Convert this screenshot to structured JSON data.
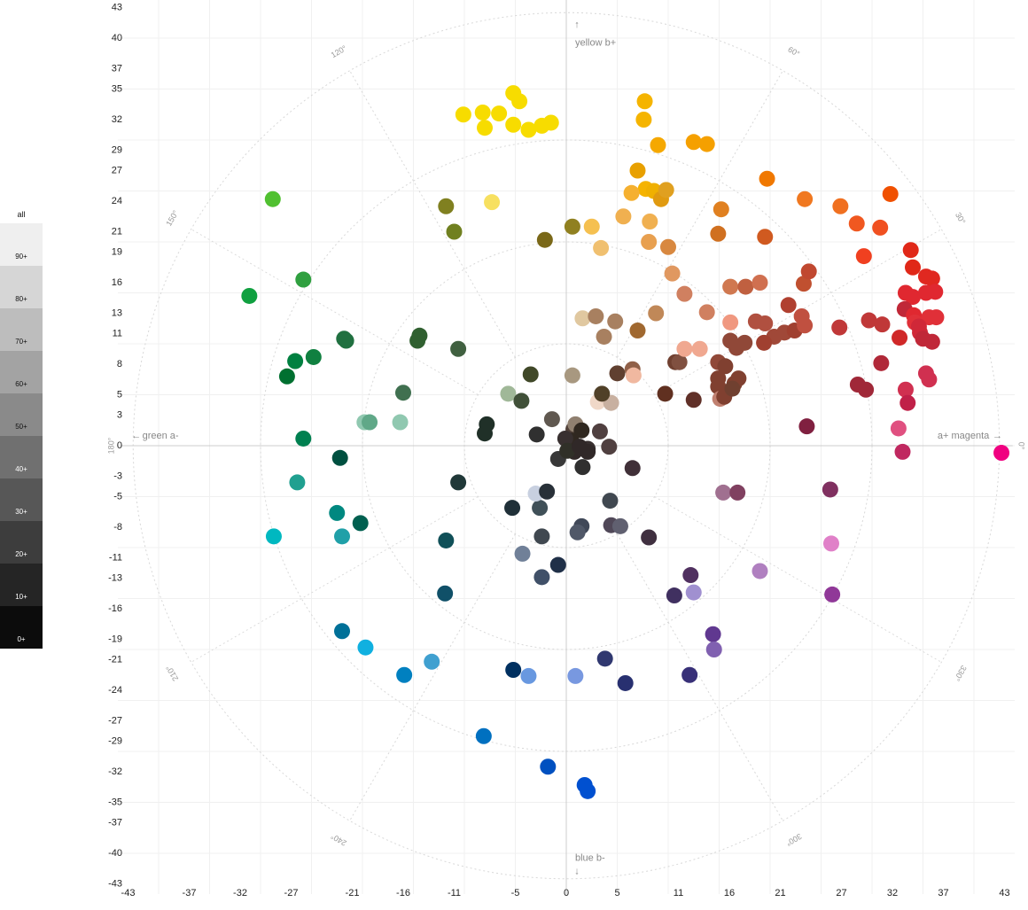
{
  "legend": {
    "all_label": "all",
    "items": [
      {
        "label": "90+",
        "color": "#efefef",
        "text": "#111"
      },
      {
        "label": "80+",
        "color": "#d6d6d6",
        "text": "#111"
      },
      {
        "label": "70+",
        "color": "#bdbdbd",
        "text": "#111"
      },
      {
        "label": "60+",
        "color": "#a3a3a3",
        "text": "#111"
      },
      {
        "label": "50+",
        "color": "#8a8a8a",
        "text": "#111"
      },
      {
        "label": "40+",
        "color": "#707070",
        "text": "#fff"
      },
      {
        "label": "30+",
        "color": "#575757",
        "text": "#fff"
      },
      {
        "label": "20+",
        "color": "#3d3d3d",
        "text": "#fff"
      },
      {
        "label": "10+",
        "color": "#252525",
        "text": "#fff"
      },
      {
        "label": "0+",
        "color": "#0c0c0c",
        "text": "#fff"
      }
    ]
  },
  "chart_data": {
    "type": "scatter",
    "axes": {
      "x_label_pos": "a+ magenta",
      "x_label_neg": "green a-",
      "y_label_pos": "yellow b+",
      "y_label_neg": "blue b-",
      "xlim": [
        -43,
        43
      ],
      "ylim": [
        -43,
        43
      ],
      "x_ticks": [
        -43,
        -37,
        -32,
        -27,
        -21,
        -16,
        -11,
        -5,
        0,
        5,
        11,
        16,
        21,
        27,
        32,
        37,
        43
      ],
      "y_ticks": [
        43,
        40,
        37,
        35,
        32,
        29,
        27,
        24,
        21,
        19,
        16,
        13,
        11,
        8,
        5,
        3,
        0,
        -3,
        -5,
        -8,
        -11,
        -13,
        -16,
        -19,
        -21,
        -24,
        -27,
        -29,
        -32,
        -35,
        -37,
        -40,
        -43
      ],
      "angle_labels": [
        "0°",
        "30°",
        "60°",
        "120°",
        "150°",
        "180°",
        "210°",
        "240°",
        "300°",
        "330°"
      ],
      "grid": true,
      "polar_grid": true
    },
    "points": [
      {
        "a": -10.1,
        "b": 32.5,
        "c": "#f7dc00"
      },
      {
        "a": -8.2,
        "b": 32.7,
        "c": "#f7dc00"
      },
      {
        "a": -6.6,
        "b": 32.6,
        "c": "#f7dc00"
      },
      {
        "a": -8.0,
        "b": 31.2,
        "c": "#f7dc00"
      },
      {
        "a": -5.2,
        "b": 34.6,
        "c": "#f7dc00"
      },
      {
        "a": -4.6,
        "b": 33.8,
        "c": "#f7dc00"
      },
      {
        "a": -5.2,
        "b": 31.5,
        "c": "#f7dc00"
      },
      {
        "a": -3.7,
        "b": 31.0,
        "c": "#f7dc00"
      },
      {
        "a": -2.4,
        "b": 31.4,
        "c": "#f7dc00"
      },
      {
        "a": -1.5,
        "b": 31.7,
        "c": "#f7dc00"
      },
      {
        "a": 7.7,
        "b": 33.8,
        "c": "#f5b400"
      },
      {
        "a": 7.6,
        "b": 32.0,
        "c": "#f5b400"
      },
      {
        "a": 9.0,
        "b": 29.5,
        "c": "#f5a800"
      },
      {
        "a": 12.5,
        "b": 29.8,
        "c": "#f5a000"
      },
      {
        "a": 13.8,
        "b": 29.6,
        "c": "#f5a000"
      },
      {
        "a": 7.0,
        "b": 27.0,
        "c": "#e8a000"
      },
      {
        "a": 7.8,
        "b": 25.2,
        "c": "#f5b300"
      },
      {
        "a": 6.4,
        "b": 24.8,
        "c": "#f5b030"
      },
      {
        "a": 8.6,
        "b": 25.0,
        "c": "#f0b000"
      },
      {
        "a": 9.3,
        "b": 24.2,
        "c": "#e09a10"
      },
      {
        "a": 9.8,
        "b": 25.1,
        "c": "#e0a020"
      },
      {
        "a": 19.7,
        "b": 26.2,
        "c": "#f07800"
      },
      {
        "a": 23.4,
        "b": 24.2,
        "c": "#f07820"
      },
      {
        "a": 26.9,
        "b": 23.5,
        "c": "#f07020"
      },
      {
        "a": 31.8,
        "b": 24.7,
        "c": "#f05000"
      },
      {
        "a": 28.5,
        "b": 21.8,
        "c": "#f05820"
      },
      {
        "a": 30.8,
        "b": 21.4,
        "c": "#f05020"
      },
      {
        "a": 29.2,
        "b": 18.6,
        "c": "#f04020"
      },
      {
        "a": 15.2,
        "b": 23.2,
        "c": "#e08020"
      },
      {
        "a": 14.9,
        "b": 20.8,
        "c": "#d07020"
      },
      {
        "a": 19.5,
        "b": 20.5,
        "c": "#d05a20"
      },
      {
        "a": 0.6,
        "b": 21.5,
        "c": "#908020"
      },
      {
        "a": 2.5,
        "b": 21.5,
        "c": "#f5c050"
      },
      {
        "a": 5.6,
        "b": 22.5,
        "c": "#f0b050"
      },
      {
        "a": 8.2,
        "b": 22.0,
        "c": "#f0b050"
      },
      {
        "a": 8.1,
        "b": 20.0,
        "c": "#e8a050"
      },
      {
        "a": 10.0,
        "b": 19.5,
        "c": "#d88840"
      },
      {
        "a": 3.4,
        "b": 19.4,
        "c": "#f0c070"
      },
      {
        "a": -2.1,
        "b": 20.2,
        "c": "#7a6818"
      },
      {
        "a": -7.3,
        "b": 23.9,
        "c": "#f7e060"
      },
      {
        "a": -11.8,
        "b": 23.5,
        "c": "#808020"
      },
      {
        "a": -11.0,
        "b": 21.0,
        "c": "#708020"
      },
      {
        "a": -28.8,
        "b": 24.2,
        "c": "#50c030"
      },
      {
        "a": -25.8,
        "b": 16.3,
        "c": "#30a040"
      },
      {
        "a": -31.1,
        "b": 14.7,
        "c": "#10a040"
      },
      {
        "a": -21.6,
        "b": 10.3,
        "c": "#207040"
      },
      {
        "a": -21.8,
        "b": 10.5,
        "c": "#207040"
      },
      {
        "a": -26.6,
        "b": 8.3,
        "c": "#008040"
      },
      {
        "a": -24.8,
        "b": 8.7,
        "c": "#108040"
      },
      {
        "a": -27.4,
        "b": 6.8,
        "c": "#007030"
      },
      {
        "a": -14.4,
        "b": 10.8,
        "c": "#306030"
      },
      {
        "a": -14.6,
        "b": 10.3,
        "c": "#306030"
      },
      {
        "a": -10.6,
        "b": 9.5,
        "c": "#406040"
      },
      {
        "a": -16.0,
        "b": 5.2,
        "c": "#407050"
      },
      {
        "a": -5.7,
        "b": 5.1,
        "c": "#a0b898"
      },
      {
        "a": -3.5,
        "b": 7.0,
        "c": "#404828"
      },
      {
        "a": -4.4,
        "b": 4.4,
        "c": "#405038"
      },
      {
        "a": -7.8,
        "b": 2.1,
        "c": "#203028"
      },
      {
        "a": -8.0,
        "b": 1.2,
        "c": "#203028"
      },
      {
        "a": -2.9,
        "b": 1.1,
        "c": "#303030"
      },
      {
        "a": -19.8,
        "b": 2.3,
        "c": "#90c8b0"
      },
      {
        "a": -19.3,
        "b": 2.3,
        "c": "#60a888"
      },
      {
        "a": -16.3,
        "b": 2.3,
        "c": "#90c8b0"
      },
      {
        "a": -25.8,
        "b": 0.7,
        "c": "#008050"
      },
      {
        "a": -22.2,
        "b": -1.2,
        "c": "#005040"
      },
      {
        "a": -26.4,
        "b": -3.6,
        "c": "#20a090"
      },
      {
        "a": -10.6,
        "b": -3.6,
        "c": "#203838"
      },
      {
        "a": -22.5,
        "b": -6.6,
        "c": "#008880"
      },
      {
        "a": -20.2,
        "b": -7.6,
        "c": "#006050"
      },
      {
        "a": -28.7,
        "b": -8.9,
        "c": "#00b8c0"
      },
      {
        "a": -22.0,
        "b": -8.9,
        "c": "#20a0a8"
      },
      {
        "a": -11.8,
        "b": -9.3,
        "c": "#105058"
      },
      {
        "a": -11.9,
        "b": -14.5,
        "c": "#105068"
      },
      {
        "a": -22.0,
        "b": -18.2,
        "c": "#007098"
      },
      {
        "a": -19.7,
        "b": -19.8,
        "c": "#10b0e0"
      },
      {
        "a": -13.2,
        "b": -21.2,
        "c": "#40a0d0"
      },
      {
        "a": -15.9,
        "b": -22.5,
        "c": "#0080c0"
      },
      {
        "a": -8.1,
        "b": -28.5,
        "c": "#0070c0"
      },
      {
        "a": -5.2,
        "b": -22.0,
        "c": "#003060"
      },
      {
        "a": -3.7,
        "b": -22.6,
        "c": "#6898e0"
      },
      {
        "a": -1.8,
        "b": -31.5,
        "c": "#0050c0"
      },
      {
        "a": 0.9,
        "b": -22.6,
        "c": "#7898e0"
      },
      {
        "a": 1.8,
        "b": -33.3,
        "c": "#0050d0"
      },
      {
        "a": 2.1,
        "b": -33.9,
        "c": "#0050d0"
      },
      {
        "a": 3.8,
        "b": -20.9,
        "c": "#303870"
      },
      {
        "a": 5.8,
        "b": -23.3,
        "c": "#283070"
      },
      {
        "a": 12.1,
        "b": -22.5,
        "c": "#383078"
      },
      {
        "a": 14.4,
        "b": -18.5,
        "c": "#603890"
      },
      {
        "a": 14.5,
        "b": -20.0,
        "c": "#8060b0"
      },
      {
        "a": 12.2,
        "b": -12.7,
        "c": "#503060"
      },
      {
        "a": 12.5,
        "b": -14.4,
        "c": "#a090d0"
      },
      {
        "a": 10.6,
        "b": -14.7,
        "c": "#403060"
      },
      {
        "a": 19.0,
        "b": -12.3,
        "c": "#b080c0"
      },
      {
        "a": 26.0,
        "b": -9.6,
        "c": "#e080c8"
      },
      {
        "a": 26.1,
        "b": -14.6,
        "c": "#903898"
      },
      {
        "a": 25.9,
        "b": -4.3,
        "c": "#803060"
      },
      {
        "a": 15.4,
        "b": -4.6,
        "c": "#a07090"
      },
      {
        "a": 16.8,
        "b": -4.6,
        "c": "#804060"
      },
      {
        "a": 8.1,
        "b": -9.0,
        "c": "#403040"
      },
      {
        "a": 4.4,
        "b": -7.8,
        "c": "#504858"
      },
      {
        "a": 5.3,
        "b": -7.9,
        "c": "#606070"
      },
      {
        "a": 1.5,
        "b": -7.9,
        "c": "#404858"
      },
      {
        "a": 1.1,
        "b": -8.5,
        "c": "#505868"
      },
      {
        "a": 4.3,
        "b": -5.4,
        "c": "#404850"
      },
      {
        "a": -2.4,
        "b": -8.9,
        "c": "#404850"
      },
      {
        "a": -4.3,
        "b": -10.6,
        "c": "#708098"
      },
      {
        "a": -2.4,
        "b": -12.9,
        "c": "#405068"
      },
      {
        "a": -0.8,
        "b": -11.7,
        "c": "#203048"
      },
      {
        "a": -5.3,
        "b": -6.1,
        "c": "#203038"
      },
      {
        "a": -2.6,
        "b": -6.1,
        "c": "#405058"
      },
      {
        "a": -3.0,
        "b": -4.7,
        "c": "#c8d0e0"
      },
      {
        "a": -1.9,
        "b": -4.5,
        "c": "#283038"
      },
      {
        "a": 6.5,
        "b": -2.2,
        "c": "#403038"
      },
      {
        "a": 4.2,
        "b": -0.1,
        "c": "#504040"
      },
      {
        "a": 1.6,
        "b": -2.1,
        "c": "#303030"
      },
      {
        "a": -0.8,
        "b": -1.3,
        "c": "#383838"
      },
      {
        "a": -1.4,
        "b": 2.6,
        "c": "#605850"
      },
      {
        "a": 0.7,
        "b": 1.6,
        "c": "#504038"
      },
      {
        "a": 0.9,
        "b": 2.1,
        "c": "#908070"
      },
      {
        "a": 2.1,
        "b": -0.3,
        "c": "#383030"
      },
      {
        "a": 3.3,
        "b": 1.4,
        "c": "#504040"
      },
      {
        "a": 0.5,
        "b": 0.5,
        "c": "#302820"
      },
      {
        "a": 1.5,
        "b": 1.5,
        "c": "#302820"
      },
      {
        "a": -0.1,
        "b": 0.7,
        "c": "#383030"
      },
      {
        "a": 2.1,
        "b": -0.6,
        "c": "#302828"
      },
      {
        "a": 0.8,
        "b": -0.6,
        "c": "#302828"
      },
      {
        "a": 0.1,
        "b": -0.5,
        "c": "#303028"
      },
      {
        "a": 1.3,
        "b": -0.1,
        "c": "#302828"
      },
      {
        "a": 3.1,
        "b": 4.3,
        "c": "#f0d8c8"
      },
      {
        "a": 4.4,
        "b": 4.2,
        "c": "#c8b0a0"
      },
      {
        "a": 3.5,
        "b": 5.1,
        "c": "#504028"
      },
      {
        "a": 0.6,
        "b": 6.9,
        "c": "#a89880"
      },
      {
        "a": 1.6,
        "b": 12.5,
        "c": "#e0c8a0"
      },
      {
        "a": 2.9,
        "b": 12.7,
        "c": "#a88060"
      },
      {
        "a": 4.8,
        "b": 12.2,
        "c": "#a88060"
      },
      {
        "a": 3.7,
        "b": 10.7,
        "c": "#a88060"
      },
      {
        "a": 7.0,
        "b": 11.3,
        "c": "#a06830"
      },
      {
        "a": 8.8,
        "b": 13.0,
        "c": "#c08858"
      },
      {
        "a": 5.0,
        "b": 7.1,
        "c": "#604030"
      },
      {
        "a": 6.5,
        "b": 7.5,
        "c": "#906048"
      },
      {
        "a": 6.6,
        "b": 6.9,
        "c": "#f0b8a0"
      },
      {
        "a": 9.7,
        "b": 5.1,
        "c": "#603020"
      },
      {
        "a": 12.5,
        "b": 4.5,
        "c": "#603028"
      },
      {
        "a": 10.7,
        "b": 8.2,
        "c": "#704030"
      },
      {
        "a": 11.1,
        "b": 8.2,
        "c": "#805040"
      },
      {
        "a": 11.6,
        "b": 9.5,
        "c": "#f0a890"
      },
      {
        "a": 13.1,
        "b": 9.5,
        "c": "#f0a890"
      },
      {
        "a": 13.8,
        "b": 13.1,
        "c": "#d08060"
      },
      {
        "a": 10.4,
        "b": 16.9,
        "c": "#e09860"
      },
      {
        "a": 11.6,
        "b": 14.9,
        "c": "#d08060"
      },
      {
        "a": 16.1,
        "b": 12.1,
        "c": "#f09880"
      },
      {
        "a": 16.1,
        "b": 15.6,
        "c": "#d07850"
      },
      {
        "a": 17.6,
        "b": 15.6,
        "c": "#c06040"
      },
      {
        "a": 19.0,
        "b": 16.0,
        "c": "#d07050"
      },
      {
        "a": 16.1,
        "b": 10.3,
        "c": "#904838"
      },
      {
        "a": 16.7,
        "b": 9.6,
        "c": "#904838"
      },
      {
        "a": 17.5,
        "b": 10.1,
        "c": "#904838"
      },
      {
        "a": 14.9,
        "b": 8.2,
        "c": "#904838"
      },
      {
        "a": 15.6,
        "b": 7.8,
        "c": "#804030"
      },
      {
        "a": 14.9,
        "b": 6.6,
        "c": "#804030"
      },
      {
        "a": 16.5,
        "b": 6.1,
        "c": "#804030"
      },
      {
        "a": 16.9,
        "b": 6.6,
        "c": "#804030"
      },
      {
        "a": 14.9,
        "b": 5.8,
        "c": "#804030"
      },
      {
        "a": 15.1,
        "b": 4.6,
        "c": "#c08070"
      },
      {
        "a": 15.5,
        "b": 4.8,
        "c": "#804030"
      },
      {
        "a": 16.3,
        "b": 5.6,
        "c": "#704030"
      },
      {
        "a": 18.6,
        "b": 12.2,
        "c": "#b05040"
      },
      {
        "a": 19.5,
        "b": 12.0,
        "c": "#b05040"
      },
      {
        "a": 20.4,
        "b": 10.7,
        "c": "#a04838"
      },
      {
        "a": 21.4,
        "b": 11.1,
        "c": "#a04838"
      },
      {
        "a": 21.8,
        "b": 13.8,
        "c": "#b04030"
      },
      {
        "a": 22.4,
        "b": 11.3,
        "c": "#a04030"
      },
      {
        "a": 23.1,
        "b": 12.7,
        "c": "#c05040"
      },
      {
        "a": 23.4,
        "b": 11.8,
        "c": "#c05040"
      },
      {
        "a": 23.3,
        "b": 15.9,
        "c": "#c05030"
      },
      {
        "a": 23.8,
        "b": 17.1,
        "c": "#c04830"
      },
      {
        "a": 19.4,
        "b": 10.1,
        "c": "#a04030"
      },
      {
        "a": 26.8,
        "b": 11.6,
        "c": "#c03838"
      },
      {
        "a": 29.7,
        "b": 12.3,
        "c": "#c03838"
      },
      {
        "a": 31.0,
        "b": 11.9,
        "c": "#c03838"
      },
      {
        "a": 32.7,
        "b": 10.6,
        "c": "#d02828"
      },
      {
        "a": 30.9,
        "b": 8.1,
        "c": "#b02838"
      },
      {
        "a": 28.6,
        "b": 6.0,
        "c": "#a02838"
      },
      {
        "a": 29.4,
        "b": 5.5,
        "c": "#a02838"
      },
      {
        "a": 33.8,
        "b": 19.2,
        "c": "#e02818"
      },
      {
        "a": 34.0,
        "b": 17.5,
        "c": "#e02818"
      },
      {
        "a": 35.3,
        "b": 16.6,
        "c": "#e02820"
      },
      {
        "a": 35.9,
        "b": 16.4,
        "c": "#e02820"
      },
      {
        "a": 33.3,
        "b": 15.0,
        "c": "#e02830"
      },
      {
        "a": 34.0,
        "b": 14.6,
        "c": "#e02830"
      },
      {
        "a": 35.3,
        "b": 15.0,
        "c": "#e02830"
      },
      {
        "a": 36.2,
        "b": 15.1,
        "c": "#e02830"
      },
      {
        "a": 33.2,
        "b": 13.4,
        "c": "#c02838"
      },
      {
        "a": 34.1,
        "b": 12.8,
        "c": "#e02830"
      },
      {
        "a": 34.2,
        "b": 12.1,
        "c": "#e03038"
      },
      {
        "a": 35.6,
        "b": 12.6,
        "c": "#e03038"
      },
      {
        "a": 36.3,
        "b": 12.6,
        "c": "#e03038"
      },
      {
        "a": 34.6,
        "b": 11.7,
        "c": "#d02838"
      },
      {
        "a": 34.7,
        "b": 11.1,
        "c": "#d02838"
      },
      {
        "a": 35.0,
        "b": 10.5,
        "c": "#c02838"
      },
      {
        "a": 35.9,
        "b": 10.2,
        "c": "#c02838"
      },
      {
        "a": 35.3,
        "b": 7.1,
        "c": "#d03050"
      },
      {
        "a": 35.6,
        "b": 6.5,
        "c": "#d03050"
      },
      {
        "a": 33.3,
        "b": 5.5,
        "c": "#d03050"
      },
      {
        "a": 33.5,
        "b": 4.2,
        "c": "#c02048"
      },
      {
        "a": 32.6,
        "b": 1.7,
        "c": "#e05080"
      },
      {
        "a": 33.0,
        "b": -0.6,
        "c": "#c02860"
      },
      {
        "a": 42.7,
        "b": -0.7,
        "c": "#f00080"
      },
      {
        "a": 23.6,
        "b": 1.9,
        "c": "#802040"
      }
    ]
  }
}
